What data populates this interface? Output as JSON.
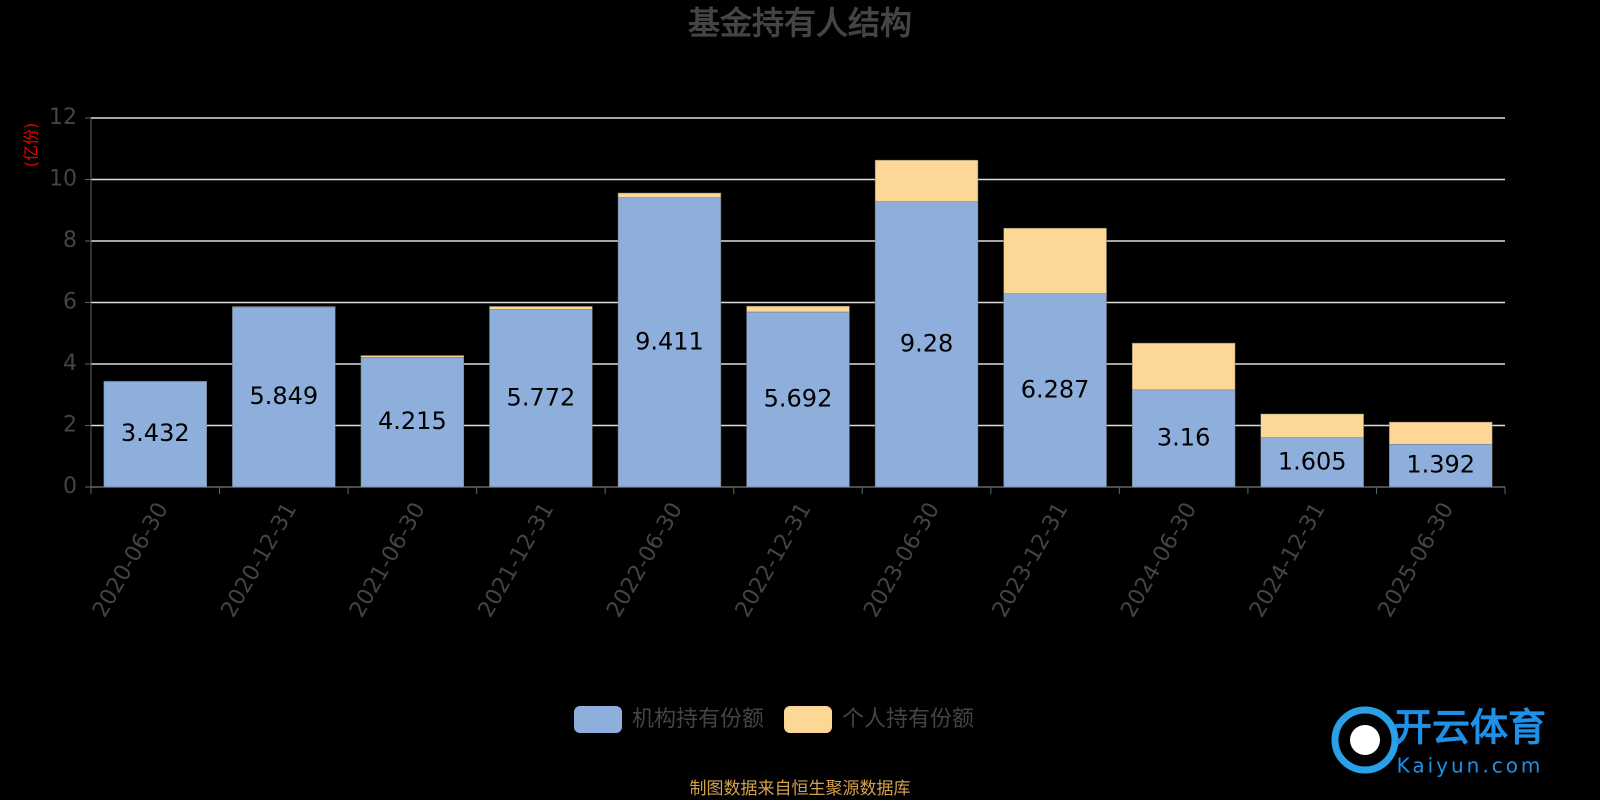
{
  "chart_data": {
    "type": "stacked_bar",
    "title": "基金持有人结构",
    "y_axis_label": "(亿份)",
    "categories": [
      "2020-06-30",
      "2020-12-31",
      "2021-06-30",
      "2021-12-31",
      "2022-06-30",
      "2022-12-31",
      "2023-06-30",
      "2023-12-31",
      "2024-06-30",
      "2024-12-31",
      "2025-06-30"
    ],
    "series": [
      {
        "name": "机构持有份额",
        "color": "#8eaedb",
        "values": [
          3.432,
          5.849,
          4.215,
          5.772,
          9.411,
          5.692,
          9.28,
          6.287,
          3.16,
          1.605,
          1.392
        ],
        "labels": true
      },
      {
        "name": "个人持有份额",
        "color": "#fdd795",
        "values": [
          0.01,
          0.02,
          0.06,
          0.1,
          0.15,
          0.19,
          1.35,
          2.13,
          1.52,
          0.77,
          0.72
        ],
        "labels": false
      }
    ],
    "ylim": [
      0,
      12
    ],
    "yticks": [
      0,
      2,
      4,
      6,
      8,
      10,
      12
    ],
    "grid": true,
    "source": "制图数据来自恒生聚源数据库",
    "watermark": {
      "name": "开云体育",
      "site": "Kaiyun.com"
    }
  }
}
